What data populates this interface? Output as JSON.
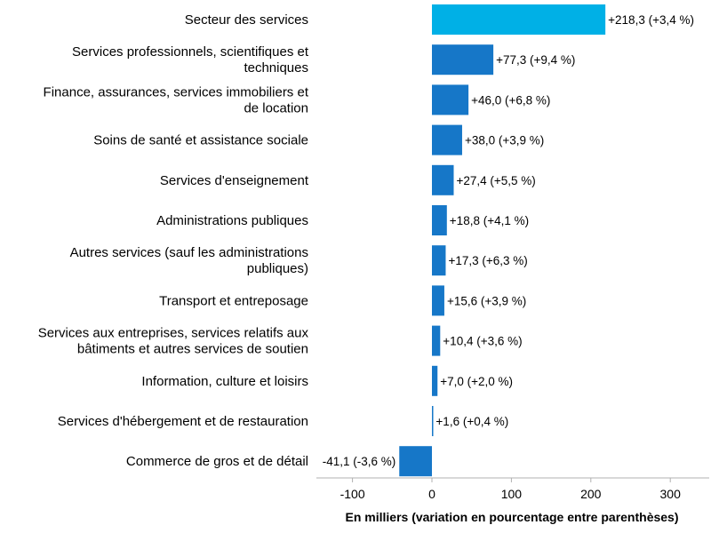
{
  "chart_data": {
    "type": "bar",
    "orientation": "horizontal",
    "categories": [
      "Secteur des services",
      "Services professionnels, scientifiques et techniques",
      "Finance, assurances, services immobiliers et de location",
      "Soins de santé et assistance sociale",
      "Services d'enseignement",
      "Administrations publiques",
      "Autres services (sauf les administrations publiques)",
      "Transport et entreposage",
      "Services aux entreprises, services relatifs aux bâtiments et autres services de soutien",
      "Information, culture et loisirs",
      "Services d'hébergement et de restauration",
      "Commerce de gros et de détail"
    ],
    "category_lines": [
      [
        "Secteur des services"
      ],
      [
        "Services professionnels, scientifiques et",
        "techniques"
      ],
      [
        "Finance, assurances, services immobiliers et",
        "de location"
      ],
      [
        "Soins de santé et assistance sociale"
      ],
      [
        "Services d'enseignement"
      ],
      [
        "Administrations publiques"
      ],
      [
        "Autres services (sauf les administrations",
        "publiques)"
      ],
      [
        "Transport et entreposage"
      ],
      [
        "Services aux entreprises, services relatifs aux",
        "bâtiments et autres services de soutien"
      ],
      [
        "Information, culture et loisirs"
      ],
      [
        "Services d'hébergement et de restauration"
      ],
      [
        "Commerce de gros et de détail"
      ]
    ],
    "values": [
      218.3,
      77.3,
      46.0,
      38.0,
      27.4,
      18.8,
      17.3,
      15.6,
      10.4,
      7.0,
      1.6,
      -41.1
    ],
    "percent_change": [
      3.4,
      9.4,
      6.8,
      3.9,
      5.5,
      4.1,
      6.3,
      3.9,
      3.6,
      2.0,
      0.4,
      -3.6
    ],
    "data_labels": [
      "+218,3 (+3,4 %)",
      "+77,3 (+9,4 %)",
      "+46,0 (+6,8 %)",
      "+38,0 (+3,9 %)",
      "+27,4 (+5,5 %)",
      "+18,8 (+4,1 %)",
      "+17,3 (+6,3 %)",
      "+15,6 (+3,9 %)",
      "+10,4 (+3,6 %)",
      "+7,0 (+2,0 %)",
      "+1,6 (+0,4 %)",
      "-41,1 (-3,6 %)"
    ],
    "xlabel": "En milliers (variation en pourcentage entre parenthèses)",
    "xlim": [
      -150,
      350
    ],
    "xticks": [
      -100,
      0,
      100,
      200,
      300
    ],
    "xtick_labels": [
      "-100",
      "0",
      "100",
      "200",
      "300"
    ],
    "grid": false,
    "colors": {
      "highlight": "#00B0E6",
      "bar": "#1677C8",
      "axis": "#b0b0b0"
    }
  }
}
